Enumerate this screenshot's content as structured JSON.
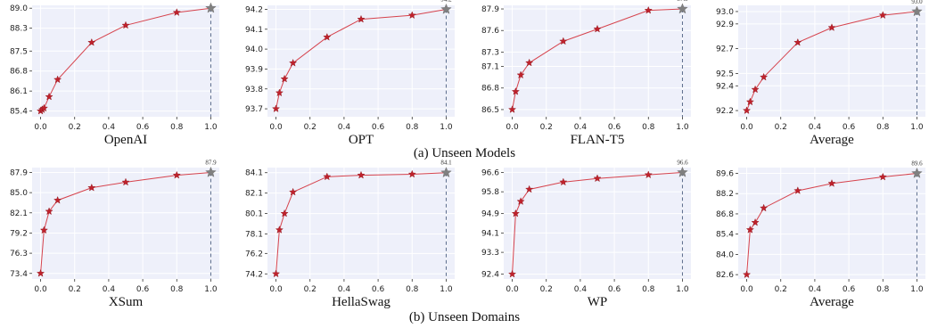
{
  "colors": {
    "plot_background": "#eef0fa",
    "grid": "#ffffff",
    "line": "#d6434d",
    "marker": "#c0222c",
    "marker_final": "#808080",
    "dashed_line": "#5b6b8c"
  },
  "rows": [
    {
      "caption": "(a) Unseen Models"
    },
    {
      "caption": "(b) Unseen Domains"
    }
  ],
  "chart_data": [
    {
      "type": "line",
      "row": 0,
      "title": "OpenAI",
      "x": [
        0,
        0.01,
        0.02,
        0.05,
        0.1,
        0.3,
        0.5,
        0.8,
        1.0
      ],
      "y": [
        85.4,
        85.45,
        85.5,
        85.9,
        86.5,
        87.8,
        88.4,
        88.85,
        89.0
      ],
      "xticks": [
        "0.0",
        "0.2",
        "0.4",
        "0.6",
        "0.8",
        "1.0"
      ],
      "yticks": [
        "85.4",
        "86.1",
        "86.8",
        "87.5",
        "88.3",
        "89.0"
      ],
      "ylim": [
        85.2,
        89.1
      ],
      "final_label": "89.0"
    },
    {
      "type": "line",
      "row": 0,
      "title": "OPT",
      "x": [
        0,
        0.02,
        0.05,
        0.1,
        0.3,
        0.5,
        0.8,
        1.0
      ],
      "y": [
        93.7,
        93.78,
        93.85,
        93.93,
        94.06,
        94.15,
        94.17,
        94.2
      ],
      "xticks": [
        "0.0",
        "0.2",
        "0.4",
        "0.6",
        "0.8",
        "1.0"
      ],
      "yticks": [
        "93.7",
        "93.8",
        "93.9",
        "94.0",
        "94.1",
        "94.2"
      ],
      "ylim": [
        93.66,
        94.22
      ],
      "final_label": "94.2"
    },
    {
      "type": "line",
      "row": 0,
      "title": "FLAN-T5",
      "x": [
        0,
        0.02,
        0.05,
        0.1,
        0.3,
        0.5,
        0.8,
        1.0
      ],
      "y": [
        86.5,
        86.75,
        86.98,
        87.15,
        87.45,
        87.62,
        87.88,
        87.9
      ],
      "xticks": [
        "0.0",
        "0.2",
        "0.4",
        "0.6",
        "0.8",
        "1.0"
      ],
      "yticks": [
        "86.5",
        "86.8",
        "87.1",
        "87.3",
        "87.6",
        "87.9"
      ],
      "ylim": [
        86.4,
        87.95
      ],
      "final_label": "87.9"
    },
    {
      "type": "line",
      "row": 0,
      "title": "Average",
      "x": [
        0,
        0.02,
        0.05,
        0.1,
        0.3,
        0.5,
        0.8,
        1.0
      ],
      "y": [
        92.2,
        92.27,
        92.37,
        92.47,
        92.75,
        92.87,
        92.97,
        93.0
      ],
      "xticks": [
        "0.0",
        "0.2",
        "0.4",
        "0.6",
        "0.8",
        "1.0"
      ],
      "yticks": [
        "92.2",
        "92.4",
        "92.5",
        "92.7",
        "92.9",
        "93.0"
      ],
      "ylim": [
        92.15,
        93.05
      ],
      "final_label": "93.0"
    },
    {
      "type": "line",
      "row": 1,
      "title": "XSum",
      "x": [
        0,
        0.02,
        0.05,
        0.1,
        0.3,
        0.5,
        0.8,
        1.0
      ],
      "y": [
        73.4,
        79.6,
        82.3,
        83.9,
        85.7,
        86.5,
        87.5,
        87.9
      ],
      "xticks": [
        "0.0",
        "0.2",
        "0.4",
        "0.6",
        "0.8",
        "1.0"
      ],
      "yticks": [
        "73.4",
        "76.3",
        "79.2",
        "82.1",
        "85.0",
        "87.9"
      ],
      "ylim": [
        72.6,
        88.6
      ],
      "final_label": "87.9"
    },
    {
      "type": "line",
      "row": 1,
      "title": "HellaSwag",
      "x": [
        0,
        0.02,
        0.05,
        0.1,
        0.3,
        0.5,
        0.8,
        1.0
      ],
      "y": [
        74.2,
        78.5,
        80.1,
        82.2,
        83.7,
        83.85,
        83.95,
        84.1
      ],
      "xticks": [
        "0.0",
        "0.2",
        "0.4",
        "0.6",
        "0.8",
        "1.0"
      ],
      "yticks": [
        "74.2",
        "76.2",
        "78.1",
        "80.1",
        "82.1",
        "84.1"
      ],
      "ylim": [
        73.7,
        84.6
      ],
      "final_label": "84.1"
    },
    {
      "type": "line",
      "row": 1,
      "title": "WP",
      "x": [
        0,
        0.02,
        0.05,
        0.1,
        0.3,
        0.5,
        0.8,
        1.0
      ],
      "y": [
        92.4,
        94.9,
        95.4,
        95.9,
        96.2,
        96.35,
        96.5,
        96.6
      ],
      "xticks": [
        "0.0",
        "0.2",
        "0.4",
        "0.6",
        "0.8",
        "1.0"
      ],
      "yticks": [
        "92.4",
        "93.3",
        "94.1",
        "94.9",
        "95.8",
        "96.6"
      ],
      "ylim": [
        92.2,
        96.8
      ],
      "final_label": "96.6"
    },
    {
      "type": "line",
      "row": 1,
      "title": "Average",
      "x": [
        0,
        0.02,
        0.05,
        0.1,
        0.3,
        0.5,
        0.8,
        1.0
      ],
      "y": [
        82.6,
        85.7,
        86.2,
        87.2,
        88.4,
        88.9,
        89.35,
        89.6
      ],
      "xticks": [
        "0.0",
        "0.2",
        "0.4",
        "0.6",
        "0.8",
        "1.0"
      ],
      "yticks": [
        "82.6",
        "84.0",
        "85.4",
        "86.8",
        "88.2",
        "89.6"
      ],
      "ylim": [
        82.3,
        90.0
      ],
      "final_label": "89.6"
    }
  ]
}
